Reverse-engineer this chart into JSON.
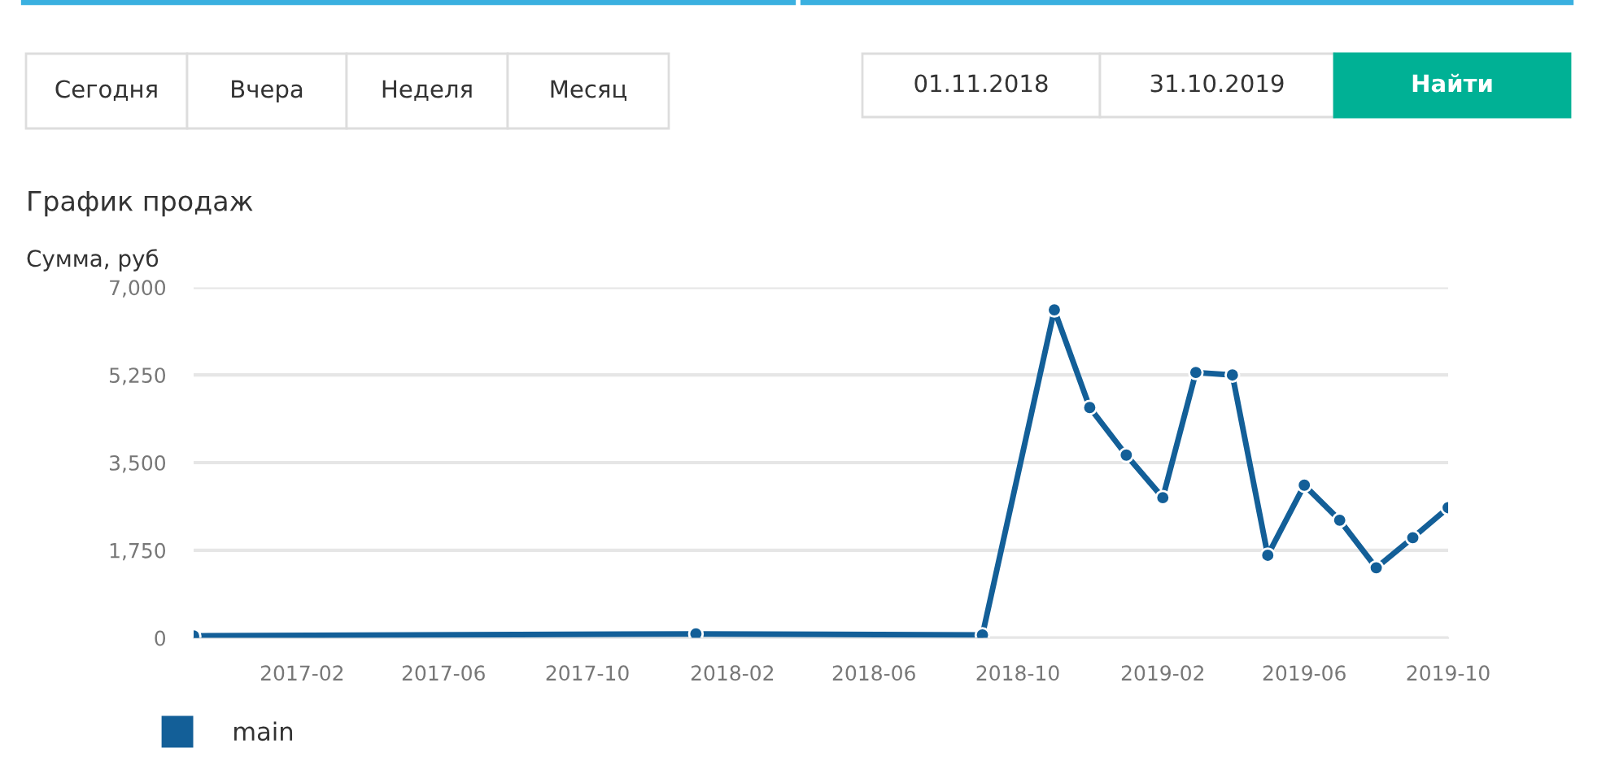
{
  "chart_data": [
    {
      "type": "other",
      "annotations": [
        "Сегодня",
        "Вчера",
        "Неделя",
        "Месяц",
        "01.11.2018",
        "31.10.2019",
        "Найти"
      ]
    },
    {
      "type": "line",
      "title": "График продаж",
      "ylabel": "Сумма, руб",
      "x": [
        "2016-11",
        "2018-01",
        "2018-09",
        "2018-11",
        "2018-12",
        "2019-01",
        "2019-02",
        "2019-03",
        "2019-04",
        "2019-05",
        "2019-06",
        "2019-07",
        "2019-08",
        "2019-09",
        "2019-10"
      ],
      "series": [
        {
          "name": "main",
          "color": "#135f98",
          "values": [
            40,
            80,
            60,
            6550,
            4600,
            3650,
            2800,
            5300,
            5250,
            1650,
            3050,
            2350,
            1400,
            2000,
            2600
          ]
        }
      ],
      "xlim": [
        "2016-11",
        "2019-10"
      ],
      "xticks": [
        "2017-02",
        "2017-06",
        "2017-10",
        "2018-02",
        "2018-06",
        "2018-10",
        "2019-02",
        "2019-06",
        "2019-10"
      ],
      "ylim": [
        0,
        7000
      ],
      "yticks": [
        0,
        {
          "value": 1750,
          "label": "1,750"
        },
        {
          "value": 3500,
          "label": "3,500"
        },
        {
          "value": 5250,
          "label": "5,250"
        },
        {
          "value": 7000,
          "label": "7,000"
        }
      ],
      "grid": "y",
      "legend": "bottom left",
      "marker": "circle",
      "line_style": "solid"
    }
  ]
}
